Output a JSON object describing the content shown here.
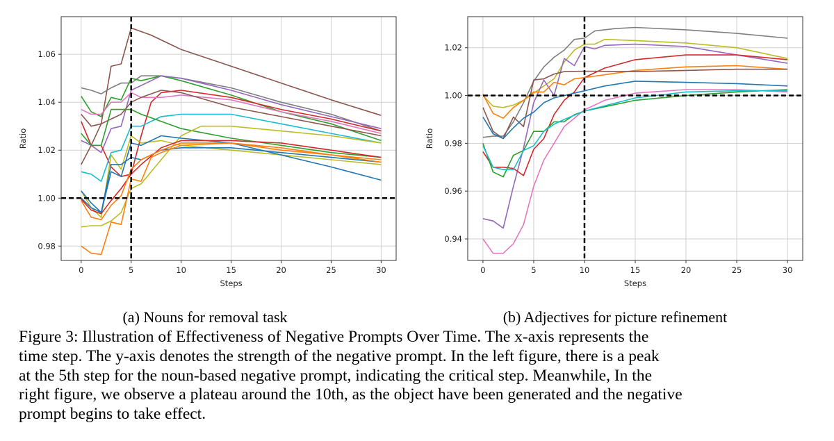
{
  "figure": {
    "subcaption_a": "(a) Nouns for removal task",
    "subcaption_b": "(b) Adjectives for picture refinement",
    "caption_lines": [
      "Figure 3: Illustration of Effectiveness of Negative Prompts Over Time. The x-axis represents the",
      "time step. The y-axis denotes the strength of the negative prompt. In the left figure, there is a peak",
      "at the 5th step for the noun-based negative prompt, indicating the critical step. Meanwhile, In the",
      "right figure, we observe a plateau around the 10th, as the object have been generated and the negative",
      "prompt begins to take effect."
    ]
  },
  "chart_data": [
    {
      "type": "line",
      "xlabel": "Steps",
      "ylabel": "Ratio",
      "xlim": [
        -2,
        31.5
      ],
      "ylim": [
        0.974,
        1.0757
      ],
      "xticks": [
        0,
        5,
        10,
        15,
        20,
        25,
        30
      ],
      "yticks": [
        0.98,
        1.0,
        1.02,
        1.04,
        1.06
      ],
      "ytick_labels": [
        "0.98",
        "1.00",
        "1.02",
        "1.04",
        "1.06"
      ],
      "grid": true,
      "reference_lines": {
        "vertical_x": 5,
        "horizontal_y": 1.0
      },
      "series": [
        {
          "color": "#8c564b",
          "x": [
            0,
            1,
            2,
            3,
            4,
            5,
            7,
            10,
            15,
            20,
            25,
            30
          ],
          "y": [
            1.014,
            1.022,
            1.031,
            1.055,
            1.056,
            1.071,
            1.068,
            1.062,
            1.055,
            1.048,
            1.041,
            1.0345
          ]
        },
        {
          "color": "#7f7f7f",
          "x": [
            0,
            1,
            2,
            3,
            4,
            5,
            6,
            8,
            10,
            15,
            20,
            25,
            30
          ],
          "y": [
            1.046,
            1.045,
            1.0435,
            1.046,
            1.048,
            1.048,
            1.051,
            1.051,
            1.05,
            1.046,
            1.04,
            1.035,
            1.028
          ]
        },
        {
          "color": "#2ca02c",
          "x": [
            0,
            1,
            2,
            3,
            4,
            5,
            6,
            8,
            10,
            15,
            20,
            25,
            30
          ],
          "y": [
            1.0425,
            1.036,
            1.034,
            1.042,
            1.041,
            1.05,
            1.049,
            1.051,
            1.049,
            1.043,
            1.036,
            1.031,
            1.024
          ]
        },
        {
          "color": "#9467bd",
          "x": [
            0,
            1,
            2,
            3,
            4,
            5,
            6,
            8,
            10,
            15,
            20,
            25,
            30
          ],
          "y": [
            1.024,
            1.022,
            1.019,
            1.029,
            1.03,
            1.045,
            1.047,
            1.051,
            1.05,
            1.045,
            1.039,
            1.034,
            1.029
          ]
        },
        {
          "color": "#d62728",
          "x": [
            0,
            1,
            2,
            3,
            4,
            5,
            6,
            7,
            8,
            10,
            15,
            20,
            25,
            30
          ],
          "y": [
            1.032,
            1.022,
            1.022,
            1.013,
            1.009,
            1.01,
            1.026,
            1.04,
            1.044,
            1.045,
            1.042,
            1.037,
            1.033,
            1.028
          ]
        },
        {
          "color": "#e377c2",
          "x": [
            0,
            1,
            2,
            3,
            4,
            5,
            6,
            8,
            10,
            15,
            20,
            25,
            30
          ],
          "y": [
            1.037,
            1.035,
            1.035,
            1.04,
            1.04,
            1.044,
            1.042,
            1.042,
            1.043,
            1.041,
            1.036,
            1.032,
            1.027
          ]
        },
        {
          "color": "#8c564b",
          "x": [
            0,
            1,
            2,
            3,
            4,
            5,
            6,
            8,
            10,
            15,
            20,
            25,
            30
          ],
          "y": [
            1.035,
            1.03,
            1.031,
            1.033,
            1.035,
            1.04,
            1.042,
            1.045,
            1.044,
            1.038,
            1.034,
            1.03,
            1.026
          ]
        },
        {
          "color": "#17becf",
          "x": [
            0,
            1,
            2,
            3,
            4,
            5,
            6,
            8,
            10,
            15,
            20,
            25,
            30
          ],
          "y": [
            1.011,
            1.01,
            1.007,
            1.019,
            1.02,
            1.03,
            1.03,
            1.034,
            1.035,
            1.035,
            1.031,
            1.027,
            1.023
          ]
        },
        {
          "color": "#2ca02c",
          "x": [
            0,
            1,
            2,
            3,
            4,
            5,
            6,
            8,
            10,
            15,
            20,
            25,
            30
          ],
          "y": [
            1.027,
            1.022,
            1.022,
            1.037,
            1.037,
            1.037,
            1.035,
            1.032,
            1.029,
            1.025,
            1.022,
            1.019,
            1.017
          ]
        },
        {
          "color": "#bcbd22",
          "x": [
            0,
            1,
            2,
            3,
            4,
            5,
            6,
            8,
            10,
            15,
            20,
            25,
            30
          ],
          "y": [
            1.003,
            0.996,
            0.992,
            1.018,
            1.012,
            1.026,
            1.023,
            1.024,
            1.022,
            1.02,
            1.018,
            1.016,
            1.014
          ]
        },
        {
          "color": "#bcbd22",
          "x": [
            0,
            1,
            2,
            3,
            4,
            5,
            6,
            8,
            10,
            12,
            15,
            20,
            25,
            30
          ],
          "y": [
            0.988,
            0.9885,
            0.9885,
            0.9905,
            0.994,
            1.004,
            1.006,
            1.016,
            1.026,
            1.03,
            1.03,
            1.028,
            1.026,
            1.023
          ]
        },
        {
          "color": "#1f77b4",
          "x": [
            0,
            1,
            2,
            3,
            4,
            5,
            6,
            8,
            10,
            15,
            20,
            25,
            30
          ],
          "y": [
            1.003,
            0.998,
            0.994,
            1.011,
            1.009,
            1.023,
            1.022,
            1.026,
            1.025,
            1.023,
            1.018,
            1.013,
            1.0075
          ]
        },
        {
          "color": "#1f77b4",
          "x": [
            0,
            1,
            2,
            3,
            4,
            5,
            6,
            8,
            10,
            15,
            20,
            25,
            30
          ],
          "y": [
            1.0,
            0.996,
            0.994,
            1.014,
            1.014,
            1.017,
            1.016,
            1.02,
            1.021,
            1.021,
            1.019,
            1.017,
            1.015
          ]
        },
        {
          "color": "#d62728",
          "x": [
            0,
            1,
            2,
            3,
            4,
            5,
            6,
            8,
            10,
            15,
            20,
            25,
            30
          ],
          "y": [
            0.9995,
            0.995,
            0.9935,
            0.999,
            1.004,
            1.01,
            1.014,
            1.021,
            1.024,
            1.024,
            1.023,
            1.02,
            1.017
          ]
        },
        {
          "color": "#ff7f0e",
          "x": [
            0,
            1,
            2,
            3,
            4,
            5,
            6,
            7,
            8,
            10,
            15,
            20,
            25,
            30
          ],
          "y": [
            0.98,
            0.977,
            0.9765,
            0.99,
            0.989,
            1.008,
            1.007,
            1.017,
            1.019,
            1.022,
            1.023,
            1.021,
            1.018,
            1.016
          ]
        },
        {
          "color": "#ff7f0e",
          "x": [
            0,
            1,
            2,
            3,
            4,
            5,
            6,
            8,
            10,
            15,
            20,
            25,
            30
          ],
          "y": [
            0.999,
            0.992,
            0.991,
            0.997,
            1.001,
            1.012,
            1.016,
            1.02,
            1.023,
            1.023,
            1.02,
            1.018,
            1.015
          ]
        }
      ]
    },
    {
      "type": "line",
      "xlabel": "Steps",
      "ylabel": "Ratio",
      "xlim": [
        -1.5,
        31.5
      ],
      "ylim": [
        0.931,
        1.033
      ],
      "xticks": [
        0,
        5,
        10,
        15,
        20,
        25,
        30
      ],
      "yticks": [
        0.94,
        0.96,
        0.98,
        1.0,
        1.02
      ],
      "ytick_labels": [
        "0.94",
        "0.96",
        "0.98",
        "1.00",
        "1.02"
      ],
      "grid": true,
      "reference_lines": {
        "vertical_x": 10,
        "horizontal_y": 1.0
      },
      "series": [
        {
          "color": "#7f7f7f",
          "x": [
            0,
            1,
            2,
            3,
            4,
            5,
            6,
            7,
            8,
            9,
            10,
            11,
            13,
            15,
            20,
            25,
            30
          ],
          "y": [
            0.9825,
            0.983,
            0.983,
            0.989,
            0.997,
            1.006,
            1.012,
            1.016,
            1.019,
            1.0235,
            1.024,
            1.027,
            1.028,
            1.0285,
            1.0275,
            1.026,
            1.024
          ]
        },
        {
          "color": "#bcbd22",
          "x": [
            0,
            1,
            2,
            3,
            4,
            5,
            6,
            7,
            8,
            9,
            10,
            11,
            12,
            15,
            20,
            25,
            30
          ],
          "y": [
            1.0,
            0.9955,
            0.995,
            0.996,
            0.998,
            1.001,
            1.004,
            1.007,
            1.014,
            1.019,
            1.0215,
            1.0215,
            1.0235,
            1.023,
            1.022,
            1.02,
            1.0155
          ]
        },
        {
          "color": "#9467bd",
          "x": [
            0,
            1,
            2,
            3,
            4,
            5,
            6,
            7,
            8,
            9,
            10,
            11,
            12,
            15,
            20,
            25,
            30
          ],
          "y": [
            0.9485,
            0.9475,
            0.9445,
            0.962,
            0.978,
            0.997,
            1.0065,
            1.0,
            1.0155,
            1.0125,
            1.0205,
            1.0195,
            1.021,
            1.0215,
            1.0205,
            1.017,
            1.0135
          ]
        },
        {
          "color": "#d62728",
          "x": [
            0,
            1,
            2,
            3,
            4,
            5,
            6,
            7,
            8,
            9,
            10,
            12,
            15,
            20,
            25,
            30
          ],
          "y": [
            0.9765,
            0.97,
            0.97,
            0.9695,
            0.9665,
            0.9775,
            0.982,
            0.992,
            0.998,
            1.0015,
            1.0075,
            1.0115,
            1.015,
            1.017,
            1.017,
            1.015
          ]
        },
        {
          "color": "#ff7f0e",
          "x": [
            0,
            1,
            2,
            3,
            4,
            5,
            6,
            7,
            8,
            9,
            10,
            15,
            20,
            25,
            30
          ],
          "y": [
            1.0005,
            0.9925,
            0.9905,
            0.995,
            0.998,
            1.0015,
            1.0015,
            1.0055,
            1.0045,
            1.007,
            1.0075,
            1.0105,
            1.012,
            1.0125,
            1.011
          ]
        },
        {
          "color": "#8c564b",
          "x": [
            0,
            1,
            2,
            3,
            4,
            5,
            6,
            7,
            8,
            10,
            15,
            20,
            25,
            30
          ],
          "y": [
            0.995,
            0.985,
            0.982,
            0.991,
            0.987,
            1.0065,
            1.007,
            1.009,
            1.01,
            1.0102,
            1.01,
            1.0105,
            1.011,
            1.011
          ]
        },
        {
          "color": "#1f77b4",
          "x": [
            0,
            1,
            2,
            3,
            4,
            5,
            6,
            7,
            8,
            10,
            12,
            15,
            20,
            25,
            30
          ],
          "y": [
            0.991,
            0.984,
            0.982,
            0.9865,
            0.9905,
            0.993,
            0.997,
            0.999,
            1.0,
            1.002,
            1.004,
            1.006,
            1.0055,
            1.005,
            1.004
          ]
        },
        {
          "color": "#e377c2",
          "x": [
            0,
            1,
            2,
            3,
            4,
            5,
            6,
            7,
            8,
            10,
            12,
            15,
            20,
            25,
            30
          ],
          "y": [
            0.94,
            0.934,
            0.934,
            0.938,
            0.946,
            0.962,
            0.973,
            0.98,
            0.987,
            0.994,
            0.998,
            1.001,
            1.0025,
            1.0025,
            1.0015
          ]
        },
        {
          "color": "#2ca02c",
          "x": [
            0,
            1,
            2,
            3,
            4,
            5,
            6,
            7,
            8,
            9,
            10,
            15,
            20,
            25,
            30
          ],
          "y": [
            0.98,
            0.968,
            0.966,
            0.975,
            0.977,
            0.985,
            0.985,
            0.989,
            0.989,
            0.992,
            0.9935,
            0.998,
            1.0,
            1.0015,
            1.0025
          ]
        },
        {
          "color": "#17becf",
          "x": [
            0,
            1,
            2,
            3,
            4,
            5,
            6,
            7,
            8,
            10,
            15,
            20,
            25,
            30
          ],
          "y": [
            0.979,
            0.97,
            0.969,
            0.969,
            0.977,
            0.979,
            0.985,
            0.988,
            0.99,
            0.9935,
            0.999,
            1.0015,
            1.002,
            1.002
          ]
        }
      ]
    }
  ]
}
